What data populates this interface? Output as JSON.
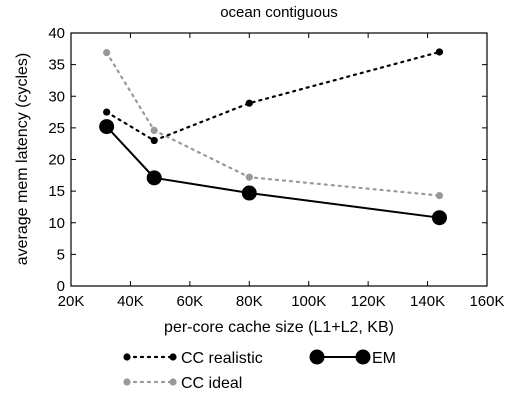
{
  "chart_data": {
    "type": "line",
    "title": "ocean contiguous",
    "xlabel": "per-core cache size (L1+L2, KB)",
    "ylabel": "average mem latency (cycles)",
    "xlim": [
      20,
      160
    ],
    "ylim": [
      0,
      40
    ],
    "x_ticks": [
      20,
      40,
      60,
      80,
      100,
      120,
      140,
      160
    ],
    "x_tick_labels": [
      "20K",
      "40K",
      "60K",
      "80K",
      "100K",
      "120K",
      "140K",
      "160K"
    ],
    "y_ticks": [
      0,
      5,
      10,
      15,
      20,
      25,
      30,
      35,
      40
    ],
    "y_tick_labels": [
      "0",
      "5",
      "10",
      "15",
      "20",
      "25",
      "30",
      "35",
      "40"
    ],
    "grid": false,
    "legend_position": "bottom",
    "series": [
      {
        "name": "CC realistic",
        "x": [
          32,
          48,
          80,
          144
        ],
        "values": [
          27.5,
          23.0,
          28.9,
          37.0
        ],
        "color": "#000000",
        "line_style": "dotted",
        "marker_size": "small"
      },
      {
        "name": "CC ideal",
        "x": [
          32,
          48,
          80,
          144
        ],
        "values": [
          36.9,
          24.6,
          17.2,
          14.3
        ],
        "color": "#999999",
        "line_style": "dotted",
        "marker_size": "small"
      },
      {
        "name": "EM",
        "x": [
          32,
          48,
          80,
          144
        ],
        "values": [
          25.2,
          17.1,
          14.7,
          10.8
        ],
        "color": "#000000",
        "line_style": "solid",
        "marker_size": "large"
      }
    ]
  }
}
